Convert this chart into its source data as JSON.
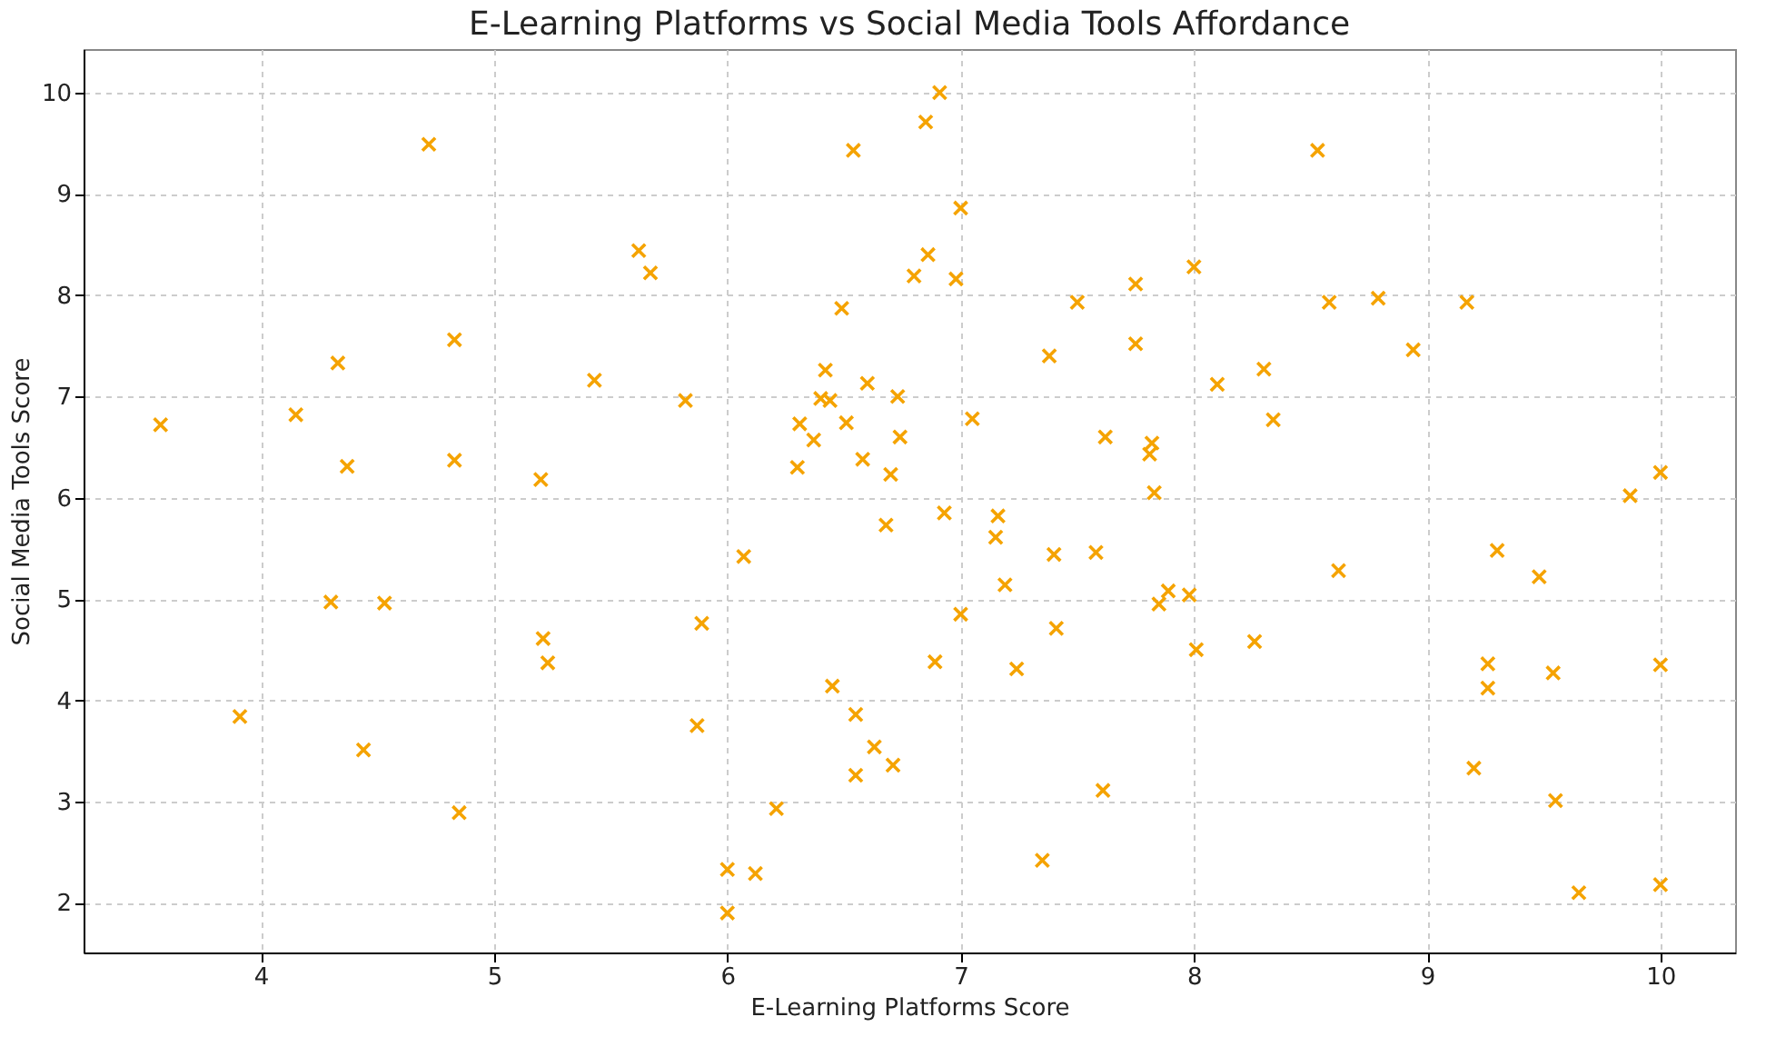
{
  "chart_data": {
    "type": "scatter",
    "title": "E-Learning Platforms vs Social Media Tools Affordance",
    "xlabel": "E-Learning Platforms Score",
    "ylabel": "Social Media Tools Score",
    "x": [
      3.57,
      3.91,
      4.15,
      4.3,
      4.33,
      4.37,
      4.44,
      4.53,
      4.72,
      4.83,
      4.83,
      4.85,
      5.2,
      5.21,
      5.23,
      5.43,
      5.62,
      5.67,
      5.82,
      5.87,
      5.89,
      6.0,
      6.0,
      6.07,
      6.12,
      6.21,
      6.3,
      6.31,
      6.37,
      6.4,
      6.42,
      6.44,
      6.45,
      6.49,
      6.51,
      6.54,
      6.55,
      6.55,
      6.58,
      6.6,
      6.63,
      6.68,
      6.7,
      6.71,
      6.73,
      6.74,
      6.8,
      6.85,
      6.86,
      6.89,
      6.91,
      6.93,
      6.98,
      7.0,
      7.0,
      7.05,
      7.15,
      7.16,
      7.19,
      7.24,
      7.35,
      7.38,
      7.4,
      7.41,
      7.5,
      7.58,
      7.61,
      7.62,
      7.75,
      7.75,
      7.81,
      7.82,
      7.83,
      7.85,
      7.89,
      7.98,
      8.0,
      8.01,
      8.1,
      8.26,
      8.3,
      8.34,
      8.53,
      8.58,
      8.62,
      8.79,
      8.94,
      9.17,
      9.2,
      9.26,
      9.26,
      9.3,
      9.48,
      9.54,
      9.55,
      9.65,
      9.87,
      10.0,
      10.0,
      10.0
    ],
    "series": [
      {
        "color": "#f5a300",
        "values": [
          6.72,
          3.84,
          6.82,
          4.97,
          7.33,
          6.31,
          3.51,
          4.96,
          9.49,
          7.56,
          6.37,
          2.89,
          6.18,
          4.61,
          4.37,
          7.16,
          8.44,
          8.22,
          6.96,
          3.75,
          4.76,
          2.33,
          1.9,
          5.42,
          2.29,
          2.93,
          6.3,
          6.73,
          6.57,
          6.98,
          7.26,
          6.96,
          4.14,
          7.87,
          6.74,
          9.43,
          3.86,
          3.26,
          6.38,
          7.13,
          3.54,
          5.73,
          6.23,
          3.36,
          7.0,
          6.6,
          8.19,
          9.71,
          8.4,
          4.38,
          10.0,
          5.85,
          8.16,
          8.86,
          4.85,
          6.78,
          5.61,
          5.82,
          5.14,
          4.31,
          2.42,
          7.4,
          5.44,
          4.71,
          7.93,
          5.46,
          3.11,
          6.6,
          8.11,
          7.52,
          6.43,
          6.54,
          6.05,
          4.95,
          5.08,
          5.04,
          8.28,
          4.5,
          7.12,
          4.58,
          7.27,
          6.77,
          9.43,
          7.93,
          5.28,
          7.97,
          7.46,
          7.93,
          3.33,
          4.36,
          4.12,
          5.48,
          5.22,
          4.27,
          3.01,
          2.1,
          6.02,
          6.25,
          4.35,
          2.18
        ]
      }
    ],
    "xlim": [
      3.24,
      10.32
    ],
    "xticks": [
      4,
      5,
      6,
      7,
      8,
      9,
      10
    ],
    "ylim": [
      1.51,
      10.43
    ],
    "yticks": [
      2,
      3,
      4,
      5,
      6,
      7,
      8,
      9,
      10
    ],
    "grid": true,
    "marker": "cross"
  }
}
